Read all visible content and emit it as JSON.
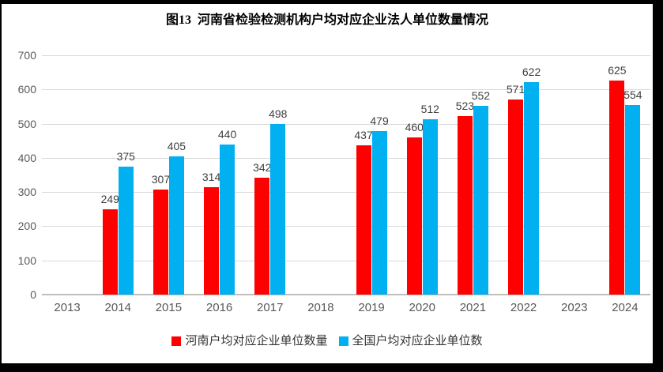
{
  "title": "图13  河南省检验检测机构户均对应企业法人单位数量情况",
  "chart_data": {
    "type": "bar",
    "title": "图13  河南省检验检测机构户均对应企业法人单位数量情况",
    "categories": [
      "2013",
      "2014",
      "2015",
      "2016",
      "2017",
      "2018",
      "2019",
      "2020",
      "2021",
      "2022",
      "2023",
      "2024"
    ],
    "series": [
      {
        "name": "河南户均对应企业单位数量",
        "color": "#ff0000",
        "values": [
          null,
          249,
          307,
          314,
          342,
          null,
          437,
          460,
          523,
          571,
          null,
          625
        ]
      },
      {
        "name": "全国户均对应企业单位数",
        "color": "#00b0f0",
        "values": [
          null,
          375,
          405,
          440,
          498,
          null,
          479,
          512,
          552,
          622,
          null,
          554
        ]
      }
    ],
    "ylim": [
      0,
      700
    ],
    "ytick_step": 100,
    "yticks": [
      "0",
      "100",
      "200",
      "300",
      "400",
      "500",
      "600",
      "700"
    ],
    "grid": true,
    "legend_position": "bottom",
    "xlabel": "",
    "ylabel": ""
  },
  "colors": {
    "series_henan": "#ff0000",
    "series_national": "#00b0f0",
    "gridline": "#d9d9d9",
    "axis_line": "#bfbfbf",
    "tick_text": "#595959",
    "data_label_text": "#404040",
    "title_text": "#000000",
    "frame": "#000000"
  }
}
